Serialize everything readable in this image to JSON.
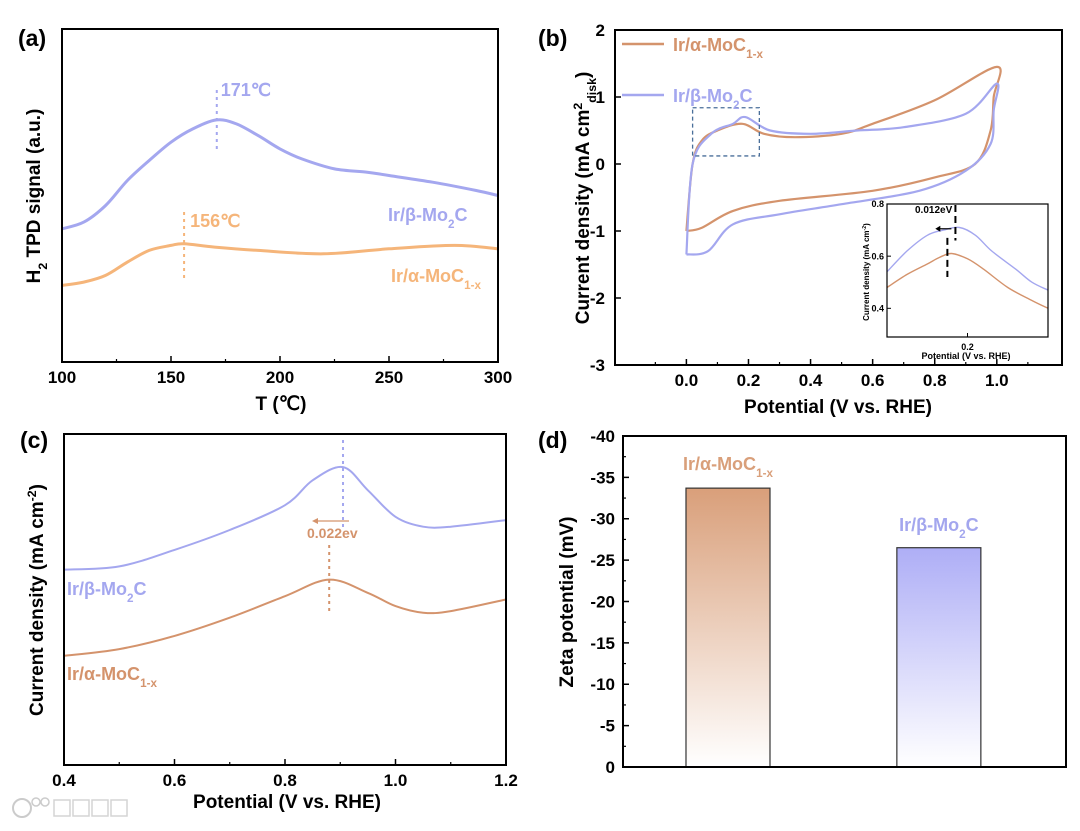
{
  "watermark": "大数跨境",
  "chart_data": [
    {
      "panel_label": "(a)",
      "type": "line",
      "xlabel": [
        {
          "t": "T (℃)"
        }
      ],
      "ylabel": [
        {
          "t": "H"
        },
        {
          "t": "2",
          "sub": true
        },
        {
          "t": " TPD signal (a.u.)"
        }
      ],
      "xlim": [
        100,
        300
      ],
      "ylim": [
        0,
        10
      ],
      "xticks": [
        100,
        150,
        200,
        250,
        300
      ],
      "xticklabels": [
        "100",
        "150",
        "200",
        "250",
        "300"
      ],
      "xminor": [
        125,
        175,
        225,
        275
      ],
      "yticks": [],
      "yticklabels": [],
      "series": [
        {
          "name": [
            {
              "t": "Ir/β-Mo"
            },
            {
              "t": "2",
              "sub": true
            },
            {
              "t": "C"
            }
          ],
          "color": "#a4a7ef",
          "x": [
            100,
            110,
            120,
            130,
            140,
            150,
            160,
            171,
            180,
            190,
            200,
            210,
            225,
            240,
            250,
            270,
            290,
            300
          ],
          "y": [
            4.0,
            4.2,
            4.7,
            5.45,
            6.05,
            6.6,
            7.0,
            7.27,
            7.15,
            6.8,
            6.4,
            6.1,
            5.8,
            5.7,
            5.6,
            5.4,
            5.15,
            5.0
          ]
        },
        {
          "name": [
            {
              "t": "Ir/α-MoC"
            },
            {
              "t": "1-x",
              "sub": true
            }
          ],
          "color": "#f5b57a",
          "x": [
            100,
            110,
            120,
            130,
            140,
            150,
            156,
            170,
            190,
            220,
            250,
            280,
            300
          ],
          "y": [
            2.3,
            2.4,
            2.6,
            3.0,
            3.35,
            3.5,
            3.55,
            3.45,
            3.35,
            3.25,
            3.4,
            3.5,
            3.4
          ]
        }
      ],
      "annotations": [
        {
          "text": "171℃",
          "x": 171,
          "series": 0
        },
        {
          "text": "156℃",
          "x": 156,
          "series": 1
        }
      ]
    },
    {
      "panel_label": "(b)",
      "type": "line",
      "xlabel": [
        {
          "t": "Potential (V vs. RHE)"
        }
      ],
      "ylabel": [
        {
          "t": "Current density (mA cm"
        },
        {
          "t": "2",
          "sup": true
        },
        {
          "t": "disk",
          "sub": true
        },
        {
          "t": ")"
        }
      ],
      "xlim": [
        -0.23,
        1.21
      ],
      "ylim": [
        -3,
        2
      ],
      "xticks": [
        0.0,
        0.2,
        0.4,
        0.6,
        0.8,
        1.0
      ],
      "xticklabels": [
        "0.0",
        "0.2",
        "0.4",
        "0.6",
        "0.8",
        "1.0"
      ],
      "xminor": [
        -0.1,
        0.1,
        0.3,
        0.5,
        0.7,
        0.9,
        1.1
      ],
      "yticks": [
        -3,
        -2,
        -1,
        0,
        1,
        2
      ],
      "yticklabels": [
        "-3",
        "-2",
        "-1",
        "0",
        "1",
        "2"
      ],
      "legend": "top-left",
      "series": [
        {
          "name": [
            {
              "t": "Ir/α-MoC"
            },
            {
              "t": "1-x",
              "sub": true
            }
          ],
          "color": "#d4936c",
          "x": [
            0.0,
            0.02,
            0.05,
            0.1,
            0.18,
            0.25,
            0.35,
            0.5,
            0.6,
            0.8,
            1.0,
            0.99,
            0.98,
            0.93,
            0.8,
            0.6,
            0.3,
            0.15,
            0.05,
            0.0
          ],
          "y": [
            -1.0,
            0.0,
            0.35,
            0.5,
            0.6,
            0.45,
            0.4,
            0.45,
            0.6,
            0.95,
            1.45,
            1.0,
            0.5,
            0.0,
            -0.2,
            -0.4,
            -0.55,
            -0.7,
            -0.95,
            -1.0
          ]
        },
        {
          "name": [
            {
              "t": "Ir/β-Mo"
            },
            {
              "t": "2",
              "sub": true
            },
            {
              "t": "C"
            }
          ],
          "color": "#a4a7ef",
          "x": [
            0.0,
            0.02,
            0.08,
            0.15,
            0.19,
            0.27,
            0.4,
            0.55,
            0.7,
            0.9,
            1.0,
            0.99,
            0.98,
            0.9,
            0.75,
            0.5,
            0.3,
            0.15,
            0.07,
            0.0
          ],
          "y": [
            -1.35,
            0.0,
            0.45,
            0.6,
            0.7,
            0.5,
            0.45,
            0.5,
            0.55,
            0.75,
            1.2,
            0.8,
            0.3,
            -0.1,
            -0.4,
            -0.6,
            -0.75,
            -0.9,
            -1.3,
            -1.35
          ]
        }
      ],
      "highlight_box": {
        "x": [
          0.02,
          0.235
        ],
        "y": [
          0.12,
          0.84
        ]
      },
      "inset": {
        "xlabel": [
          {
            "t": "Potential (V vs. RHE)"
          }
        ],
        "ylabel": [
          {
            "t": "Current density (mA cm"
          },
          {
            "t": "-2",
            "sup": true
          },
          {
            "t": ")"
          }
        ],
        "xlim": [
          0.1,
          0.3
        ],
        "ylim": [
          0.29,
          0.8
        ],
        "xticks": [
          0.2
        ],
        "xticklabels": [
          "0.2"
        ],
        "yticks": [
          0.4,
          0.6,
          0.8
        ],
        "yticklabels": [
          "0.4",
          "0.6",
          "0.8"
        ],
        "series": [
          {
            "color": "#a4a7ef",
            "x": [
              0.1,
              0.125,
              0.15,
              0.17,
              0.19,
              0.21,
              0.23,
              0.26,
              0.28,
              0.3
            ],
            "y": [
              0.54,
              0.62,
              0.68,
              0.7,
              0.71,
              0.68,
              0.62,
              0.55,
              0.5,
              0.47
            ]
          },
          {
            "color": "#d4936c",
            "x": [
              0.1,
              0.125,
              0.15,
              0.165,
              0.18,
              0.2,
              0.22,
              0.25,
              0.28,
              0.3
            ],
            "y": [
              0.48,
              0.53,
              0.57,
              0.595,
              0.61,
              0.59,
              0.55,
              0.48,
              0.43,
              0.4
            ]
          }
        ],
        "markers": [
          0.185,
          0.175
        ],
        "annotation": "0.012eV"
      }
    },
    {
      "panel_label": "(c)",
      "type": "line",
      "xlabel": [
        {
          "t": "Potential (V vs. RHE)"
        }
      ],
      "ylabel": [
        {
          "t": "Current density (mA cm"
        },
        {
          "t": "-2",
          "sup": true
        },
        {
          "t": ")"
        }
      ],
      "xlim": [
        0.4,
        1.2
      ],
      "ylim": [
        0,
        10
      ],
      "xticks": [
        0.4,
        0.6,
        0.8,
        1.0,
        1.2
      ],
      "xticklabels": [
        "0.4",
        "0.6",
        "0.8",
        "1.0",
        "1.2"
      ],
      "xminor": [
        0.5,
        0.7,
        0.9,
        1.1
      ],
      "yticks": [],
      "yticklabels": [],
      "series": [
        {
          "name": [
            {
              "t": "Ir/β-Mo"
            },
            {
              "t": "2",
              "sub": true
            },
            {
              "t": "C"
            }
          ],
          "color": "#a4a7ef",
          "x": [
            0.4,
            0.5,
            0.6,
            0.7,
            0.8,
            0.85,
            0.905,
            0.95,
            1.0,
            1.05,
            1.1,
            1.2
          ],
          "y": [
            5.9,
            6.0,
            6.5,
            7.1,
            7.85,
            8.6,
            9.0,
            8.3,
            7.5,
            7.2,
            7.2,
            7.4
          ]
        },
        {
          "name": [
            {
              "t": "Ir/α-MoC"
            },
            {
              "t": "1-x",
              "sub": true
            }
          ],
          "color": "#d4936c",
          "x": [
            0.4,
            0.5,
            0.6,
            0.7,
            0.8,
            0.88,
            0.95,
            1.0,
            1.05,
            1.1,
            1.2
          ],
          "y": [
            3.3,
            3.5,
            3.9,
            4.45,
            5.1,
            5.6,
            5.2,
            4.8,
            4.6,
            4.65,
            5.0
          ]
        }
      ],
      "markers": [
        0.905,
        0.88
      ],
      "annotation": "0.022ev"
    },
    {
      "panel_label": "(d)",
      "type": "bar",
      "ylabel": [
        {
          "t": "Zeta potential (mV)"
        }
      ],
      "ylim": [
        0,
        -40
      ],
      "yticks": [
        0,
        -5,
        -10,
        -15,
        -20,
        -25,
        -30,
        -35,
        -40
      ],
      "yticklabels": [
        "0",
        "-5",
        "-10",
        "-15",
        "-20",
        "-25",
        "-30",
        "-35",
        "-40"
      ],
      "yminor": [
        -2.5,
        -7.5,
        -12.5,
        -17.5,
        -22.5,
        -27.5,
        -32.5,
        -37.5
      ],
      "categories": [
        [
          {
            "t": "Ir/α-MoC"
          },
          {
            "t": "1-x",
            "sub": true
          }
        ],
        [
          {
            "t": "Ir/β-Mo"
          },
          {
            "t": "2",
            "sub": true
          },
          {
            "t": "C"
          }
        ]
      ],
      "values": [
        -33.7,
        -26.5
      ],
      "colors": [
        "#d99f7a",
        "#aeaef6"
      ]
    }
  ]
}
